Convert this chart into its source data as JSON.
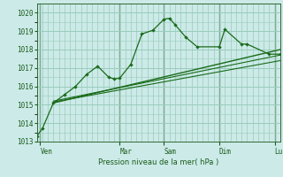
{
  "bg_color": "#cceae8",
  "grid_color": "#99ccbb",
  "line_color_main": "#1a6b1a",
  "line_color_light": "#2d8a2d",
  "ylim": [
    1013,
    1020.5
  ],
  "xlim": [
    0,
    22
  ],
  "yticks": [
    1013,
    1014,
    1015,
    1016,
    1017,
    1018,
    1019,
    1020
  ],
  "xlabel": "Pression niveau de la mer( hPa )",
  "day_tick_positions": [
    0.3,
    7.5,
    11.5,
    16.5,
    21.5
  ],
  "day_labels": [
    "Ven",
    "Mar",
    "Sam",
    "Dim",
    "Lun"
  ],
  "day_vlines": [
    0.3,
    7.5,
    11.5,
    16.5,
    21.5
  ],
  "series1_x": [
    0,
    0.5,
    1.5,
    2.5,
    3.5,
    4.5,
    5.5,
    6.5,
    7.0,
    7.5,
    8.5,
    9.5,
    10.5,
    11.5,
    12.0,
    12.5,
    13.5,
    14.5,
    16.5,
    17.0,
    18.5,
    19.0,
    21.0,
    22.0
  ],
  "series1_y": [
    1013.3,
    1013.7,
    1015.1,
    1015.55,
    1016.0,
    1016.65,
    1017.1,
    1016.5,
    1016.4,
    1016.45,
    1017.2,
    1018.85,
    1019.05,
    1019.65,
    1019.7,
    1019.35,
    1018.65,
    1018.15,
    1018.15,
    1019.1,
    1018.3,
    1018.3,
    1017.75,
    1017.75
  ],
  "trend1_x": [
    1.5,
    22.0
  ],
  "trend1_y": [
    1015.1,
    1018.0
  ],
  "trend2_x": [
    1.5,
    22.0
  ],
  "trend2_y": [
    1015.2,
    1017.7
  ],
  "trend3_x": [
    1.5,
    22.0
  ],
  "trend3_y": [
    1015.15,
    1017.4
  ]
}
